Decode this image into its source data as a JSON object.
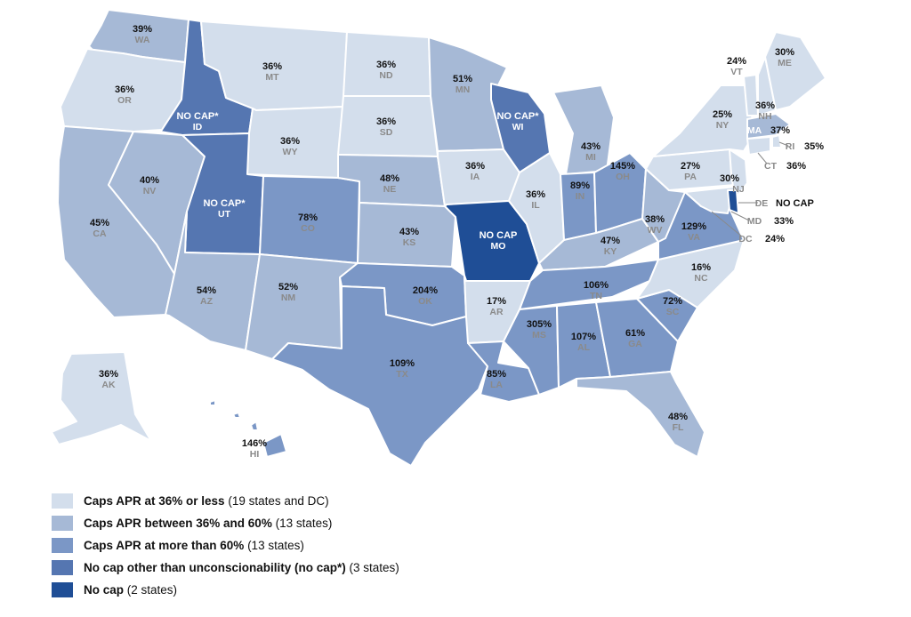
{
  "colors": {
    "cat1": "#d3deec",
    "cat2": "#a6b9d6",
    "cat3": "#7b97c6",
    "cat4": "#5576b1",
    "cat5": "#1f4e96",
    "label_dark": "#111111",
    "label_light": "#ffffff",
    "abbr_dark": "#8a8a8a",
    "border": "#ffffff"
  },
  "states": [
    {
      "abbr": "WA",
      "value": "39%",
      "cat": 2
    },
    {
      "abbr": "OR",
      "value": "36%",
      "cat": 1
    },
    {
      "abbr": "CA",
      "value": "45%",
      "cat": 2
    },
    {
      "abbr": "ID",
      "value": "NO CAP*",
      "cat": 4
    },
    {
      "abbr": "NV",
      "value": "40%",
      "cat": 2
    },
    {
      "abbr": "MT",
      "value": "36%",
      "cat": 1
    },
    {
      "abbr": "WY",
      "value": "36%",
      "cat": 1
    },
    {
      "abbr": "UT",
      "value": "NO CAP*",
      "cat": 4
    },
    {
      "abbr": "AZ",
      "value": "54%",
      "cat": 2
    },
    {
      "abbr": "CO",
      "value": "78%",
      "cat": 3
    },
    {
      "abbr": "NM",
      "value": "52%",
      "cat": 2
    },
    {
      "abbr": "ND",
      "value": "36%",
      "cat": 1
    },
    {
      "abbr": "SD",
      "value": "36%",
      "cat": 1
    },
    {
      "abbr": "NE",
      "value": "48%",
      "cat": 2
    },
    {
      "abbr": "KS",
      "value": "43%",
      "cat": 2
    },
    {
      "abbr": "OK",
      "value": "204%",
      "cat": 3
    },
    {
      "abbr": "TX",
      "value": "109%",
      "cat": 3
    },
    {
      "abbr": "MN",
      "value": "51%",
      "cat": 2
    },
    {
      "abbr": "IA",
      "value": "36%",
      "cat": 1
    },
    {
      "abbr": "MO",
      "value": "NO CAP",
      "cat": 5
    },
    {
      "abbr": "AR",
      "value": "17%",
      "cat": 1
    },
    {
      "abbr": "LA",
      "value": "85%",
      "cat": 3
    },
    {
      "abbr": "WI",
      "value": "NO CAP*",
      "cat": 4
    },
    {
      "abbr": "IL",
      "value": "36%",
      "cat": 1
    },
    {
      "abbr": "MI",
      "value": "43%",
      "cat": 2
    },
    {
      "abbr": "IN",
      "value": "89%",
      "cat": 3
    },
    {
      "abbr": "OH",
      "value": "145%",
      "cat": 3
    },
    {
      "abbr": "KY",
      "value": "47%",
      "cat": 2
    },
    {
      "abbr": "TN",
      "value": "106%",
      "cat": 3
    },
    {
      "abbr": "MS",
      "value": "305%",
      "cat": 3
    },
    {
      "abbr": "AL",
      "value": "107%",
      "cat": 3
    },
    {
      "abbr": "GA",
      "value": "61%",
      "cat": 3
    },
    {
      "abbr": "FL",
      "value": "48%",
      "cat": 2
    },
    {
      "abbr": "SC",
      "value": "72%",
      "cat": 3
    },
    {
      "abbr": "NC",
      "value": "16%",
      "cat": 1
    },
    {
      "abbr": "VA",
      "value": "129%",
      "cat": 3
    },
    {
      "abbr": "WV",
      "value": "38%",
      "cat": 2
    },
    {
      "abbr": "PA",
      "value": "27%",
      "cat": 1
    },
    {
      "abbr": "NY",
      "value": "25%",
      "cat": 1
    },
    {
      "abbr": "VT",
      "value": "24%",
      "cat": 1
    },
    {
      "abbr": "NH",
      "value": "36%",
      "cat": 1
    },
    {
      "abbr": "ME",
      "value": "30%",
      "cat": 1
    },
    {
      "abbr": "MA",
      "value": "37%",
      "cat": 2
    },
    {
      "abbr": "RI",
      "value": "35%",
      "cat": 1
    },
    {
      "abbr": "CT",
      "value": "36%",
      "cat": 1
    },
    {
      "abbr": "NJ",
      "value": "30%",
      "cat": 1
    },
    {
      "abbr": "DE",
      "value": "NO CAP",
      "cat": 5
    },
    {
      "abbr": "MD",
      "value": "33%",
      "cat": 1
    },
    {
      "abbr": "DC",
      "value": "24%",
      "cat": 1
    },
    {
      "abbr": "AK",
      "value": "36%",
      "cat": 1
    },
    {
      "abbr": "HI",
      "value": "146%",
      "cat": 3
    }
  ],
  "legend": [
    {
      "bold": "Caps APR at 36% or less",
      "note": " (19 states and DC)",
      "cat": 1
    },
    {
      "bold": "Caps APR between 36% and 60%",
      "note": " (13 states)",
      "cat": 2
    },
    {
      "bold": "Caps APR at more than 60%",
      "note": " (13 states)",
      "cat": 3
    },
    {
      "bold": "No cap other than unconscionability (no cap*)",
      "note": " (3 states)",
      "cat": 4
    },
    {
      "bold": "No cap",
      "note": " (2 states)",
      "cat": 5
    }
  ]
}
